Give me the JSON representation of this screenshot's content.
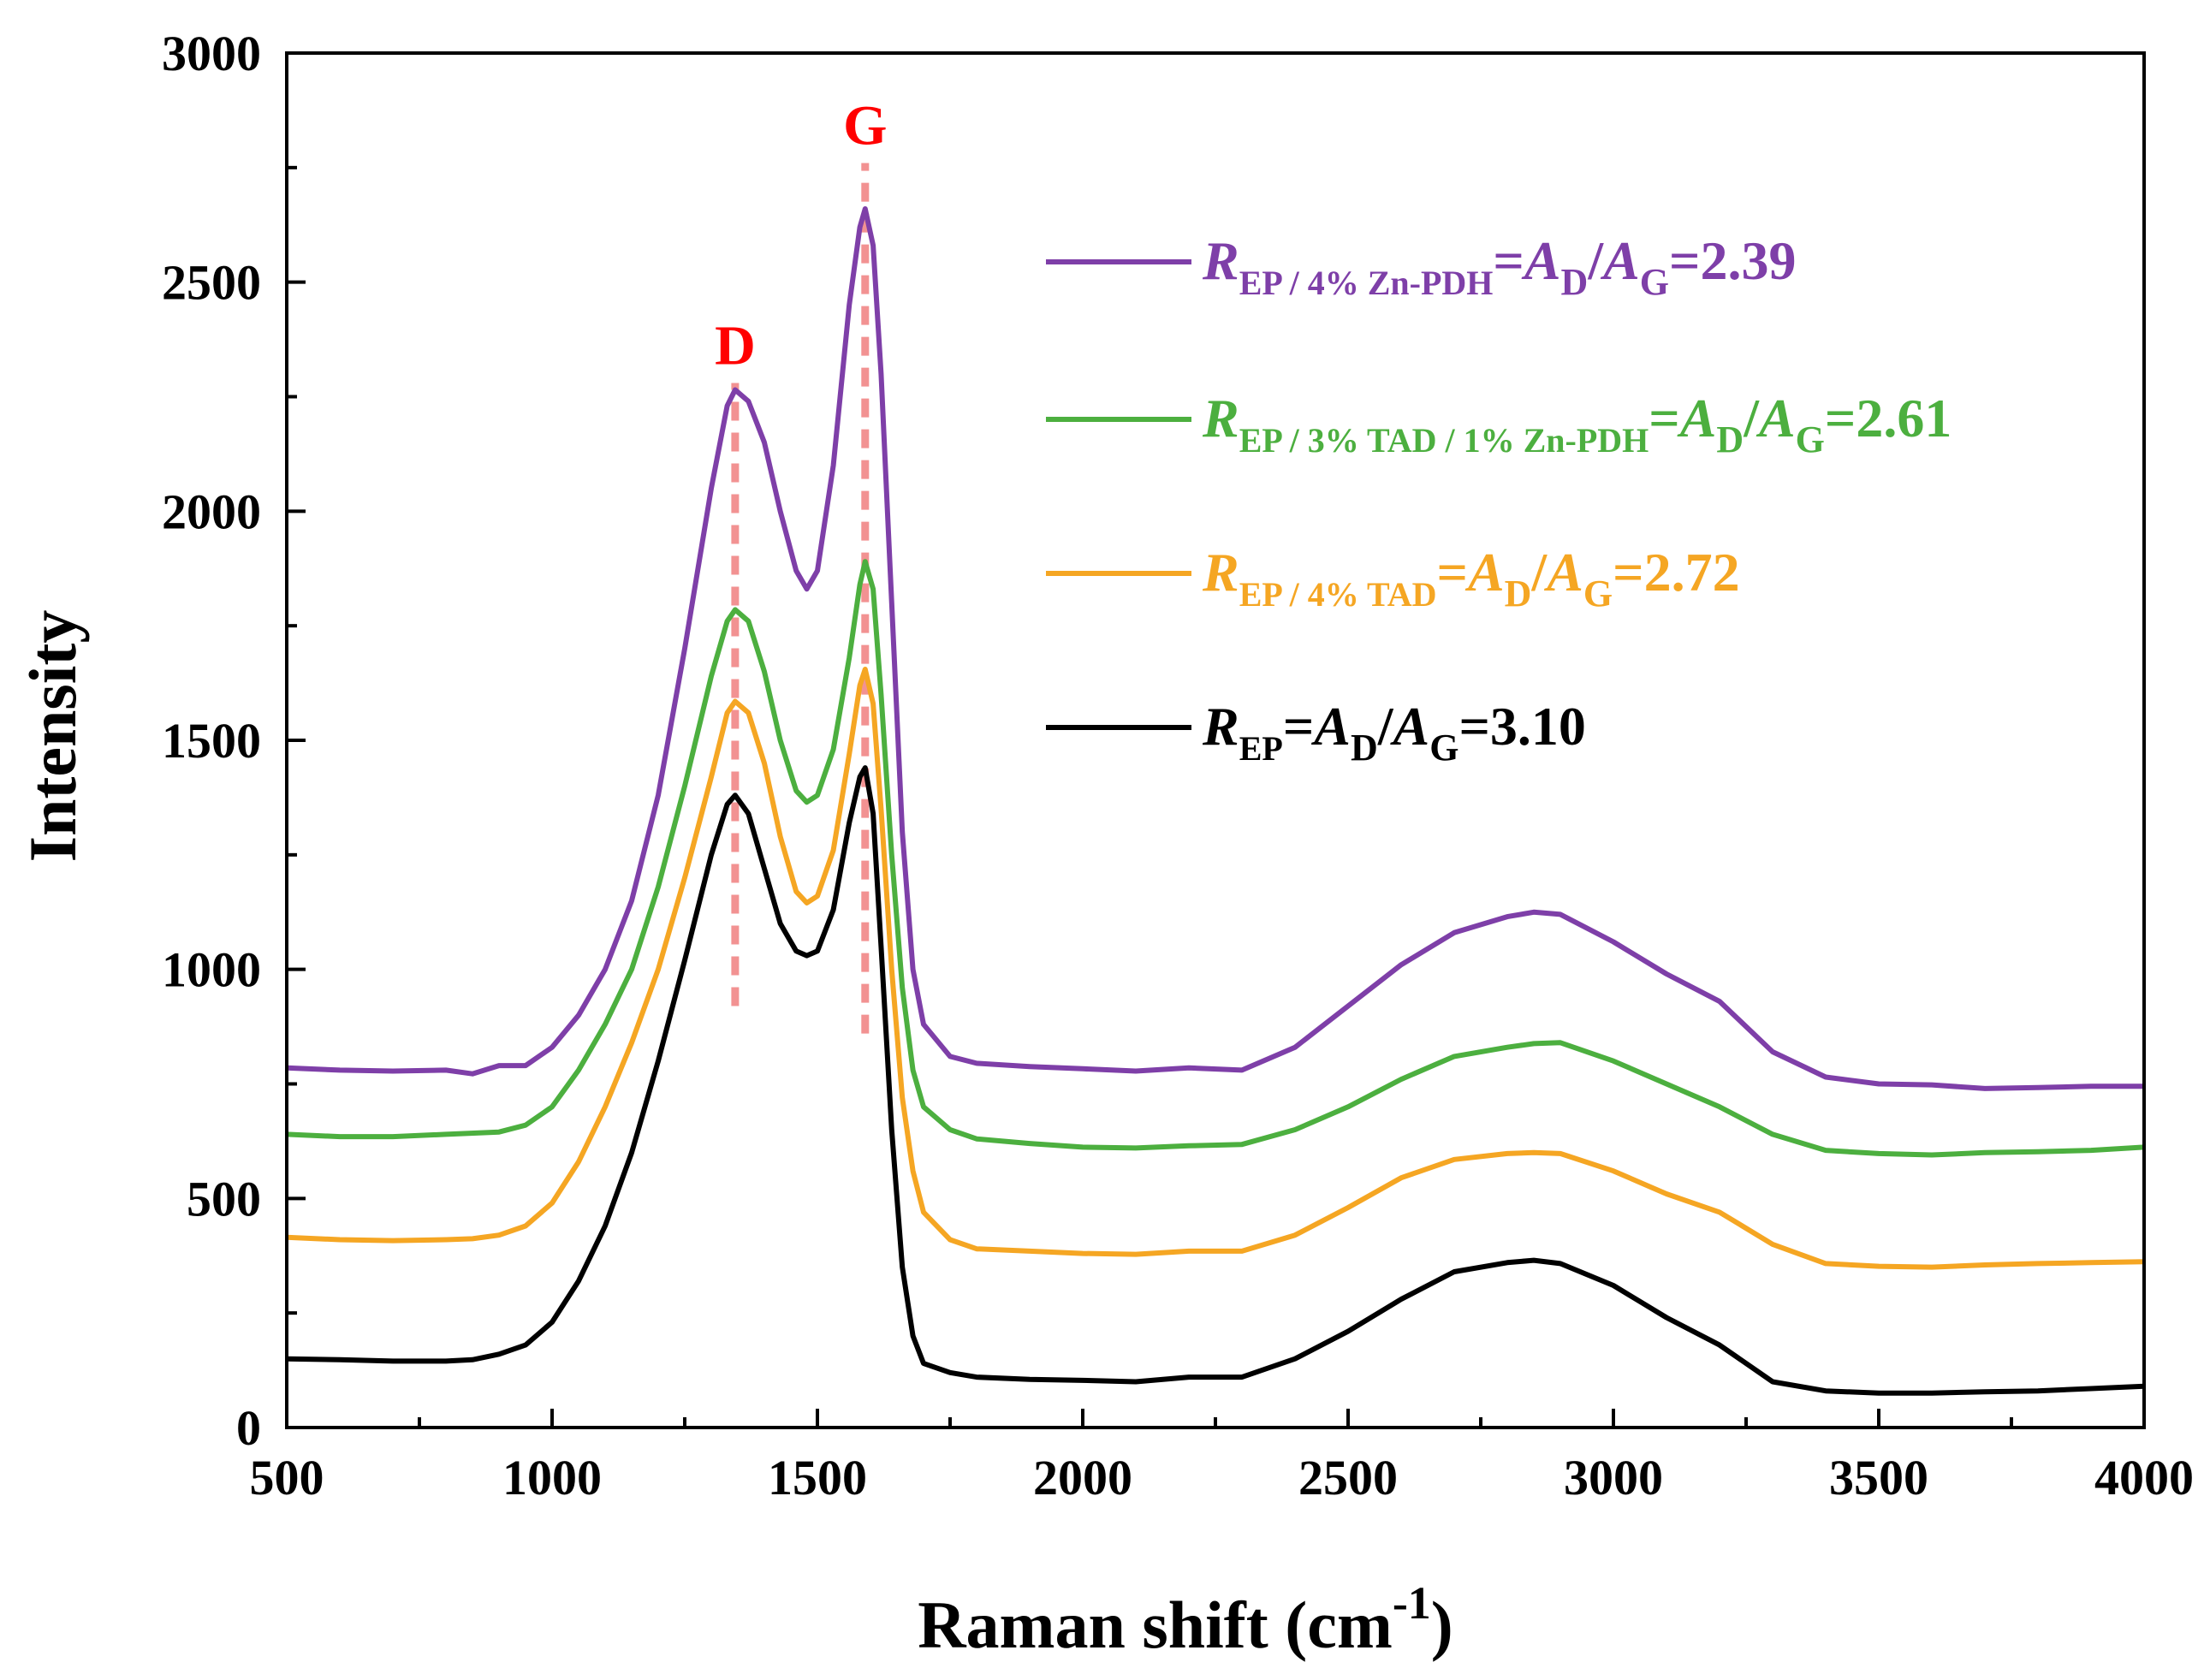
{
  "chart_data": {
    "type": "line",
    "xlabel": "Raman shift (cm",
    "xlabel_sup": "-1",
    "xlabel_close": ")",
    "ylabel": "Intensity",
    "xlim": [
      500,
      4000
    ],
    "ylim": [
      0,
      3000
    ],
    "x_ticks": [
      500,
      1000,
      1500,
      2000,
      2500,
      3000,
      3500,
      4000
    ],
    "y_ticks": [
      0,
      500,
      1000,
      1500,
      2000,
      2500,
      3000
    ],
    "x_tick_labels": [
      "500",
      "1000",
      "1500",
      "2000",
      "2500",
      "3000",
      "3500",
      "4000"
    ],
    "y_tick_labels": [
      "0",
      "500",
      "1000",
      "1500",
      "2000",
      "2500",
      "3000"
    ],
    "peak_markers": [
      {
        "label": "D",
        "x": 1345,
        "y_from": 920,
        "y_to": 2280,
        "color": "#f08080"
      },
      {
        "label": "G",
        "x": 1590,
        "y_from": 860,
        "y_to": 2760,
        "color": "#f08080"
      }
    ],
    "series": [
      {
        "name": "EP / 4% Zn-PDH",
        "color": "#7e3fa8",
        "legend": {
          "R": "R",
          "sub": "EP / 4% Zn-PDH",
          "eq1": "=",
          "A1": "A",
          "sub1": "D",
          "slash": "/",
          "A2": "A",
          "sub2": "G",
          "value": "=2.39"
        },
        "points": [
          [
            500,
            785
          ],
          [
            600,
            780
          ],
          [
            700,
            778
          ],
          [
            800,
            780
          ],
          [
            850,
            772
          ],
          [
            900,
            790
          ],
          [
            950,
            790
          ],
          [
            1000,
            830
          ],
          [
            1050,
            900
          ],
          [
            1100,
            1000
          ],
          [
            1150,
            1150
          ],
          [
            1200,
            1380
          ],
          [
            1250,
            1700
          ],
          [
            1300,
            2050
          ],
          [
            1330,
            2230
          ],
          [
            1345,
            2265
          ],
          [
            1370,
            2240
          ],
          [
            1400,
            2150
          ],
          [
            1430,
            2000
          ],
          [
            1460,
            1870
          ],
          [
            1480,
            1830
          ],
          [
            1500,
            1870
          ],
          [
            1530,
            2100
          ],
          [
            1560,
            2450
          ],
          [
            1580,
            2620
          ],
          [
            1590,
            2660
          ],
          [
            1605,
            2580
          ],
          [
            1620,
            2300
          ],
          [
            1640,
            1800
          ],
          [
            1660,
            1300
          ],
          [
            1680,
            1000
          ],
          [
            1700,
            880
          ],
          [
            1750,
            810
          ],
          [
            1800,
            795
          ],
          [
            1900,
            788
          ],
          [
            2000,
            783
          ],
          [
            2100,
            778
          ],
          [
            2200,
            785
          ],
          [
            2300,
            780
          ],
          [
            2400,
            830
          ],
          [
            2500,
            920
          ],
          [
            2600,
            1010
          ],
          [
            2700,
            1080
          ],
          [
            2800,
            1115
          ],
          [
            2850,
            1125
          ],
          [
            2900,
            1120
          ],
          [
            3000,
            1060
          ],
          [
            3100,
            990
          ],
          [
            3200,
            930
          ],
          [
            3300,
            820
          ],
          [
            3400,
            765
          ],
          [
            3500,
            750
          ],
          [
            3600,
            748
          ],
          [
            3700,
            740
          ],
          [
            3800,
            742
          ],
          [
            3900,
            745
          ],
          [
            4000,
            745
          ]
        ]
      },
      {
        "name": "EP / 3% TAD / 1% Zn-PDH",
        "color": "#4caf3f",
        "legend": {
          "R": "R",
          "sub": "EP / 3% TAD / 1% Zn-PDH",
          "eq1": "=",
          "A1": "A",
          "sub1": "D",
          "slash": "/",
          "A2": "A",
          "sub2": "G",
          "value": "=2.61"
        },
        "points": [
          [
            500,
            640
          ],
          [
            600,
            635
          ],
          [
            700,
            635
          ],
          [
            800,
            640
          ],
          [
            900,
            645
          ],
          [
            950,
            660
          ],
          [
            1000,
            700
          ],
          [
            1050,
            780
          ],
          [
            1100,
            880
          ],
          [
            1150,
            1000
          ],
          [
            1200,
            1180
          ],
          [
            1250,
            1400
          ],
          [
            1300,
            1640
          ],
          [
            1330,
            1760
          ],
          [
            1345,
            1785
          ],
          [
            1370,
            1760
          ],
          [
            1400,
            1650
          ],
          [
            1430,
            1500
          ],
          [
            1460,
            1390
          ],
          [
            1480,
            1365
          ],
          [
            1500,
            1380
          ],
          [
            1530,
            1480
          ],
          [
            1560,
            1680
          ],
          [
            1580,
            1840
          ],
          [
            1590,
            1890
          ],
          [
            1605,
            1830
          ],
          [
            1620,
            1600
          ],
          [
            1640,
            1250
          ],
          [
            1660,
            960
          ],
          [
            1680,
            780
          ],
          [
            1700,
            700
          ],
          [
            1750,
            650
          ],
          [
            1800,
            630
          ],
          [
            1900,
            620
          ],
          [
            2000,
            612
          ],
          [
            2100,
            610
          ],
          [
            2200,
            615
          ],
          [
            2300,
            618
          ],
          [
            2400,
            650
          ],
          [
            2500,
            700
          ],
          [
            2600,
            760
          ],
          [
            2700,
            810
          ],
          [
            2800,
            830
          ],
          [
            2850,
            838
          ],
          [
            2900,
            840
          ],
          [
            3000,
            800
          ],
          [
            3100,
            750
          ],
          [
            3200,
            700
          ],
          [
            3300,
            640
          ],
          [
            3400,
            605
          ],
          [
            3500,
            598
          ],
          [
            3600,
            595
          ],
          [
            3700,
            600
          ],
          [
            3800,
            602
          ],
          [
            3900,
            605
          ],
          [
            4000,
            612
          ]
        ]
      },
      {
        "name": "EP / 4% TAD",
        "color": "#f5a623",
        "legend": {
          "R": "R",
          "sub": "EP / 4% TAD",
          "eq1": "=",
          "A1": "A",
          "sub1": "D",
          "slash": "/",
          "A2": "A",
          "sub2": "G",
          "value": "=2.72"
        },
        "points": [
          [
            500,
            415
          ],
          [
            600,
            410
          ],
          [
            700,
            408
          ],
          [
            800,
            410
          ],
          [
            850,
            412
          ],
          [
            900,
            420
          ],
          [
            950,
            440
          ],
          [
            1000,
            490
          ],
          [
            1050,
            580
          ],
          [
            1100,
            700
          ],
          [
            1150,
            840
          ],
          [
            1200,
            1000
          ],
          [
            1250,
            1200
          ],
          [
            1300,
            1420
          ],
          [
            1330,
            1560
          ],
          [
            1345,
            1585
          ],
          [
            1370,
            1560
          ],
          [
            1400,
            1450
          ],
          [
            1430,
            1290
          ],
          [
            1460,
            1170
          ],
          [
            1480,
            1145
          ],
          [
            1500,
            1160
          ],
          [
            1530,
            1260
          ],
          [
            1560,
            1470
          ],
          [
            1580,
            1620
          ],
          [
            1590,
            1655
          ],
          [
            1605,
            1580
          ],
          [
            1620,
            1350
          ],
          [
            1640,
            1000
          ],
          [
            1660,
            720
          ],
          [
            1680,
            560
          ],
          [
            1700,
            470
          ],
          [
            1750,
            410
          ],
          [
            1800,
            390
          ],
          [
            1900,
            385
          ],
          [
            2000,
            380
          ],
          [
            2100,
            378
          ],
          [
            2200,
            385
          ],
          [
            2300,
            385
          ],
          [
            2400,
            420
          ],
          [
            2500,
            480
          ],
          [
            2600,
            545
          ],
          [
            2700,
            585
          ],
          [
            2800,
            598
          ],
          [
            2850,
            600
          ],
          [
            2900,
            598
          ],
          [
            3000,
            560
          ],
          [
            3100,
            510
          ],
          [
            3200,
            470
          ],
          [
            3300,
            400
          ],
          [
            3400,
            358
          ],
          [
            3500,
            352
          ],
          [
            3600,
            350
          ],
          [
            3700,
            355
          ],
          [
            3800,
            358
          ],
          [
            3900,
            360
          ],
          [
            4000,
            362
          ]
        ]
      },
      {
        "name": "EP",
        "color": "#000000",
        "legend": {
          "R": "R",
          "sub": "EP",
          "eq1": "=",
          "A1": "A",
          "sub1": "D",
          "slash": "/",
          "A2": "A",
          "sub2": "G",
          "value": "=3.10"
        },
        "points": [
          [
            500,
            150
          ],
          [
            600,
            148
          ],
          [
            700,
            145
          ],
          [
            800,
            145
          ],
          [
            850,
            148
          ],
          [
            900,
            160
          ],
          [
            950,
            180
          ],
          [
            1000,
            230
          ],
          [
            1050,
            320
          ],
          [
            1100,
            440
          ],
          [
            1150,
            600
          ],
          [
            1200,
            800
          ],
          [
            1250,
            1020
          ],
          [
            1300,
            1250
          ],
          [
            1330,
            1360
          ],
          [
            1345,
            1380
          ],
          [
            1370,
            1340
          ],
          [
            1400,
            1220
          ],
          [
            1430,
            1100
          ],
          [
            1460,
            1040
          ],
          [
            1480,
            1030
          ],
          [
            1500,
            1040
          ],
          [
            1530,
            1130
          ],
          [
            1560,
            1320
          ],
          [
            1580,
            1420
          ],
          [
            1590,
            1440
          ],
          [
            1605,
            1340
          ],
          [
            1620,
            1050
          ],
          [
            1640,
            650
          ],
          [
            1660,
            350
          ],
          [
            1680,
            200
          ],
          [
            1700,
            140
          ],
          [
            1750,
            120
          ],
          [
            1800,
            110
          ],
          [
            1900,
            105
          ],
          [
            2000,
            103
          ],
          [
            2100,
            100
          ],
          [
            2200,
            110
          ],
          [
            2300,
            110
          ],
          [
            2400,
            150
          ],
          [
            2500,
            210
          ],
          [
            2600,
            280
          ],
          [
            2700,
            340
          ],
          [
            2800,
            360
          ],
          [
            2850,
            365
          ],
          [
            2900,
            358
          ],
          [
            3000,
            310
          ],
          [
            3100,
            240
          ],
          [
            3200,
            180
          ],
          [
            3300,
            100
          ],
          [
            3400,
            80
          ],
          [
            3500,
            75
          ],
          [
            3600,
            75
          ],
          [
            3700,
            78
          ],
          [
            3800,
            80
          ],
          [
            3900,
            85
          ],
          [
            4000,
            90
          ]
        ]
      }
    ]
  }
}
